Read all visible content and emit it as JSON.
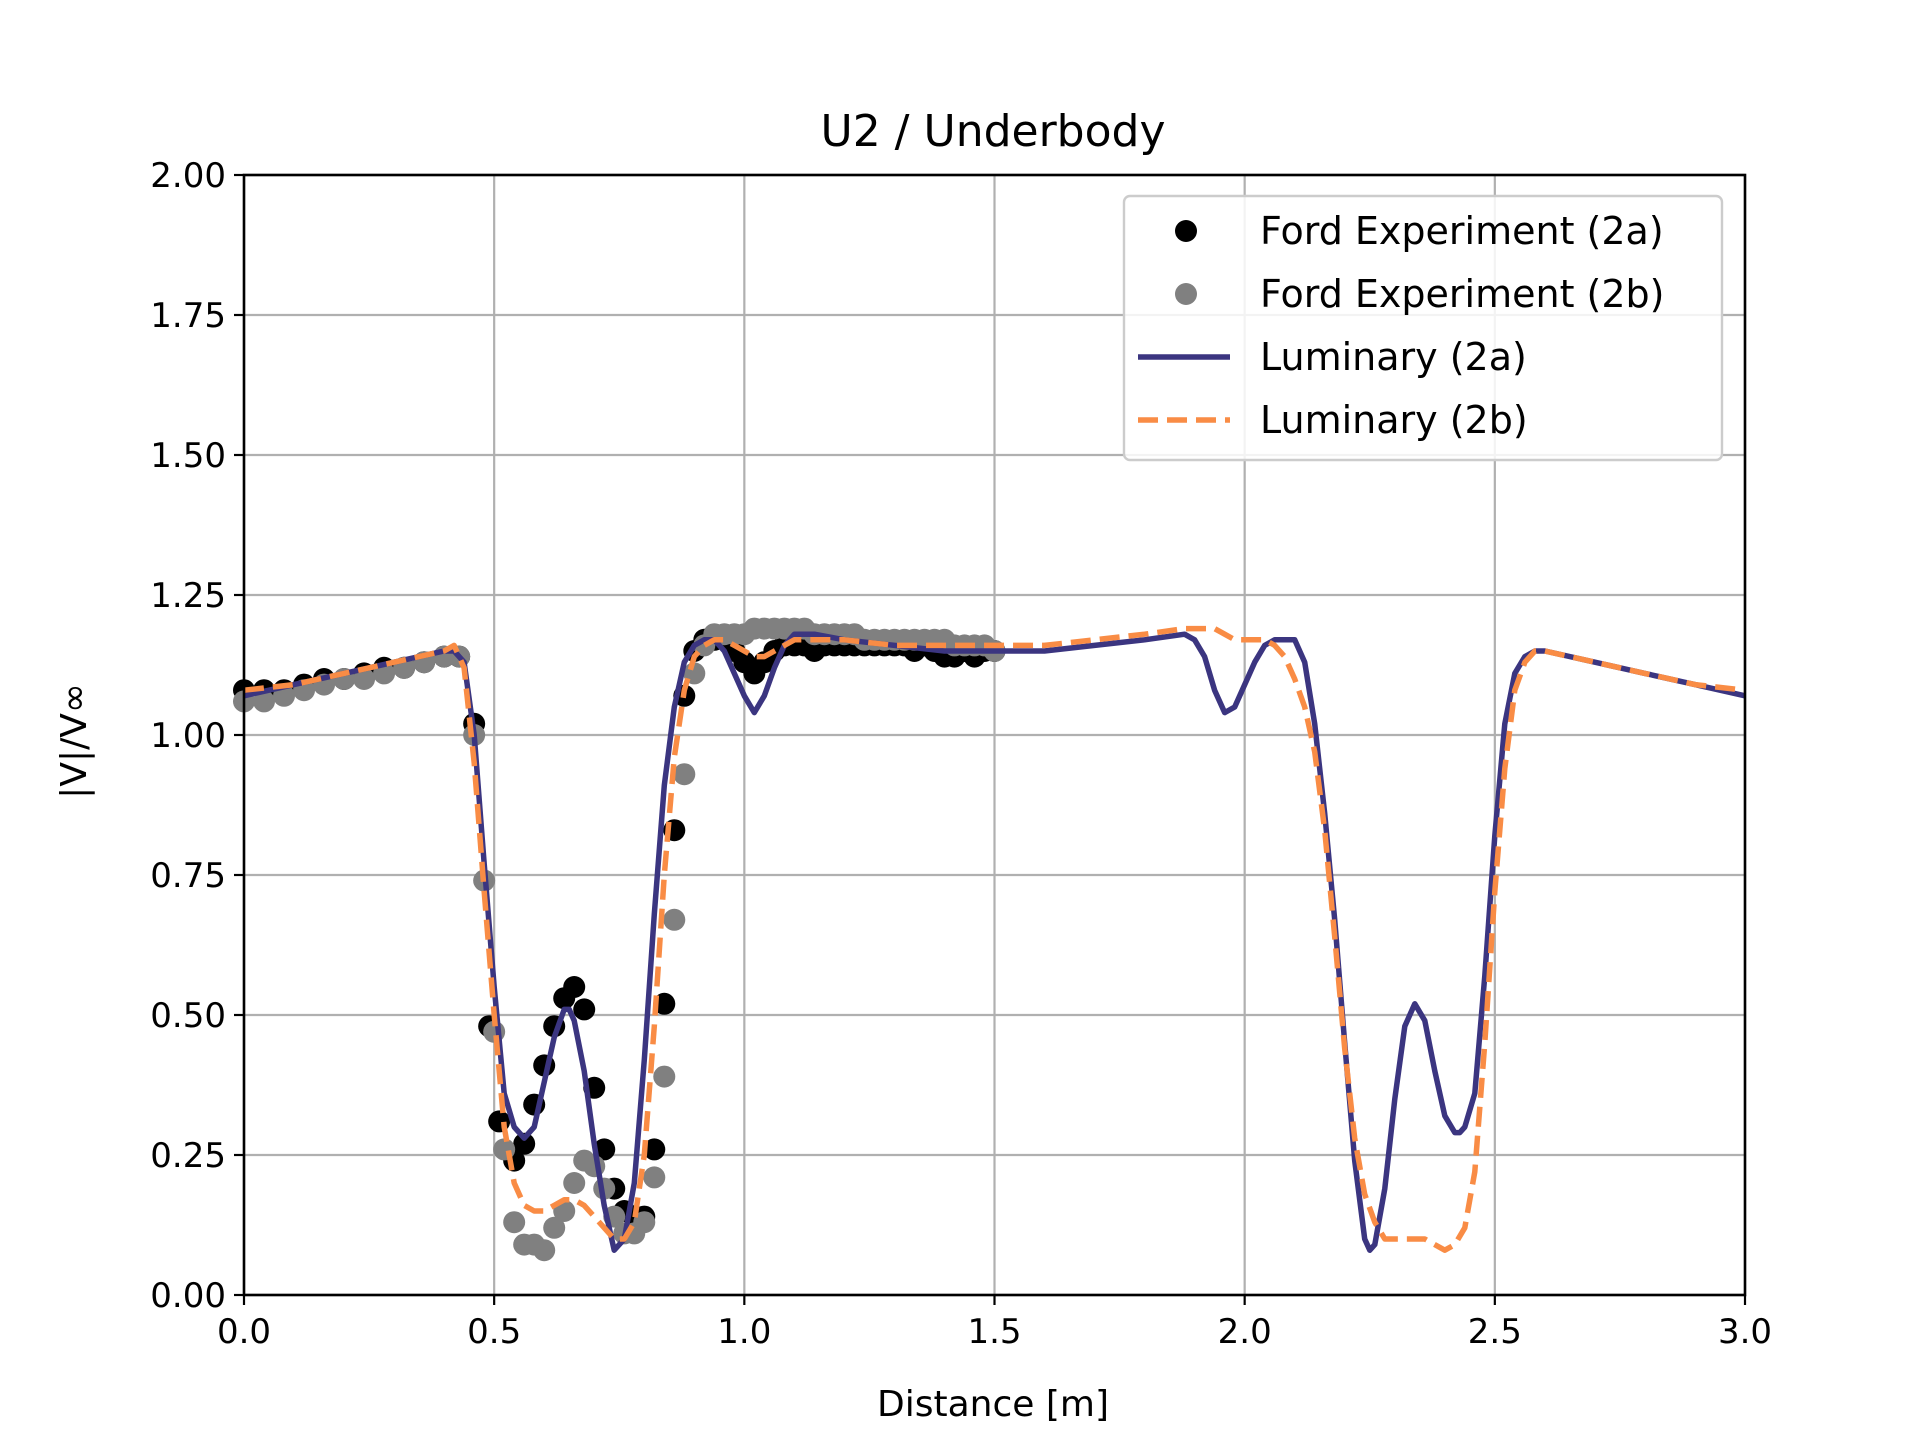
{
  "chart_data": {
    "type": "line",
    "title": "U2 / Underbody",
    "xlabel": "Distance [m]",
    "ylabel": "|V|/V∞",
    "xlim": [
      0.0,
      3.0
    ],
    "ylim": [
      0.0,
      2.0
    ],
    "x_ticks": [
      "0.0",
      "0.5",
      "1.0",
      "1.5",
      "2.0",
      "2.5",
      "3.0"
    ],
    "y_ticks": [
      "0.00",
      "0.25",
      "0.50",
      "0.75",
      "1.00",
      "1.25",
      "1.50",
      "1.75",
      "2.00"
    ],
    "grid": true,
    "legend_position": "top-right",
    "colors": {
      "exp_2a": "#000000",
      "exp_2b": "#808080",
      "lum_2a": "#3b3580",
      "lum_2b": "#f98c45",
      "grid": "#b0b0b0"
    },
    "series": [
      {
        "name": "Ford Experiment (2a)",
        "style": "scatter",
        "x": [
          0.0,
          0.04,
          0.08,
          0.12,
          0.16,
          0.2,
          0.24,
          0.28,
          0.32,
          0.36,
          0.4,
          0.43,
          0.46,
          0.49,
          0.51,
          0.54,
          0.56,
          0.58,
          0.6,
          0.62,
          0.64,
          0.66,
          0.68,
          0.7,
          0.72,
          0.74,
          0.76,
          0.78,
          0.8,
          0.82,
          0.84,
          0.86,
          0.88,
          0.9,
          0.92,
          0.94,
          0.96,
          0.98,
          1.0,
          1.02,
          1.04,
          1.06,
          1.08,
          1.1,
          1.12,
          1.14,
          1.16,
          1.18,
          1.2,
          1.22,
          1.24,
          1.26,
          1.28,
          1.3,
          1.32,
          1.34,
          1.36,
          1.38,
          1.4,
          1.42,
          1.44,
          1.46,
          1.48,
          1.5
        ],
        "y": [
          1.08,
          1.08,
          1.08,
          1.09,
          1.1,
          1.1,
          1.11,
          1.12,
          1.12,
          1.13,
          1.14,
          1.14,
          1.02,
          0.48,
          0.31,
          0.24,
          0.27,
          0.34,
          0.41,
          0.48,
          0.53,
          0.55,
          0.51,
          0.37,
          0.26,
          0.19,
          0.15,
          0.14,
          0.14,
          0.26,
          0.52,
          0.83,
          1.07,
          1.15,
          1.17,
          1.17,
          1.17,
          1.15,
          1.13,
          1.11,
          1.13,
          1.15,
          1.16,
          1.16,
          1.16,
          1.15,
          1.16,
          1.16,
          1.16,
          1.16,
          1.16,
          1.16,
          1.16,
          1.16,
          1.16,
          1.15,
          1.16,
          1.15,
          1.14,
          1.14,
          1.15,
          1.14,
          1.15,
          1.15
        ]
      },
      {
        "name": "Ford Experiment (2b)",
        "style": "scatter",
        "x": [
          0.0,
          0.04,
          0.08,
          0.12,
          0.16,
          0.2,
          0.24,
          0.28,
          0.32,
          0.36,
          0.4,
          0.43,
          0.46,
          0.48,
          0.5,
          0.52,
          0.54,
          0.56,
          0.58,
          0.6,
          0.62,
          0.64,
          0.66,
          0.68,
          0.7,
          0.72,
          0.74,
          0.76,
          0.78,
          0.8,
          0.82,
          0.84,
          0.86,
          0.88,
          0.9,
          0.92,
          0.94,
          0.96,
          0.98,
          1.0,
          1.02,
          1.04,
          1.06,
          1.08,
          1.1,
          1.12,
          1.14,
          1.16,
          1.18,
          1.2,
          1.22,
          1.24,
          1.26,
          1.28,
          1.3,
          1.32,
          1.34,
          1.36,
          1.38,
          1.4,
          1.42,
          1.44,
          1.46,
          1.48,
          1.5
        ],
        "y": [
          1.06,
          1.06,
          1.07,
          1.08,
          1.09,
          1.1,
          1.1,
          1.11,
          1.12,
          1.13,
          1.14,
          1.14,
          1.0,
          0.74,
          0.47,
          0.26,
          0.13,
          0.09,
          0.09,
          0.08,
          0.12,
          0.15,
          0.2,
          0.24,
          0.23,
          0.19,
          0.14,
          0.11,
          0.11,
          0.13,
          0.21,
          0.39,
          0.67,
          0.93,
          1.11,
          1.16,
          1.18,
          1.18,
          1.18,
          1.18,
          1.19,
          1.19,
          1.19,
          1.19,
          1.19,
          1.19,
          1.18,
          1.18,
          1.18,
          1.18,
          1.18,
          1.17,
          1.17,
          1.17,
          1.17,
          1.17,
          1.17,
          1.17,
          1.17,
          1.17,
          1.16,
          1.16,
          1.16,
          1.16,
          1.15
        ]
      },
      {
        "name": "Luminary (2a)",
        "style": "solid",
        "x": [
          0.0,
          0.1,
          0.2,
          0.3,
          0.4,
          0.42,
          0.44,
          0.46,
          0.48,
          0.5,
          0.52,
          0.54,
          0.56,
          0.58,
          0.6,
          0.62,
          0.64,
          0.65,
          0.66,
          0.68,
          0.7,
          0.72,
          0.74,
          0.76,
          0.78,
          0.8,
          0.82,
          0.84,
          0.86,
          0.88,
          0.9,
          0.92,
          0.94,
          0.96,
          0.98,
          1.0,
          1.02,
          1.04,
          1.06,
          1.08,
          1.1,
          1.14,
          1.2,
          1.3,
          1.4,
          1.5,
          1.6,
          1.7,
          1.8,
          1.88,
          1.9,
          1.92,
          1.94,
          1.96,
          1.98,
          2.0,
          2.02,
          2.04,
          2.06,
          2.08,
          2.1,
          2.12,
          2.14,
          2.16,
          2.18,
          2.2,
          2.22,
          2.24,
          2.25,
          2.26,
          2.28,
          2.3,
          2.32,
          2.34,
          2.36,
          2.38,
          2.4,
          2.42,
          2.43,
          2.44,
          2.46,
          2.48,
          2.5,
          2.52,
          2.54,
          2.56,
          2.58,
          2.6,
          2.7,
          2.8,
          2.9,
          3.0
        ],
        "y": [
          1.07,
          1.09,
          1.11,
          1.13,
          1.15,
          1.15,
          1.13,
          1.0,
          0.77,
          0.55,
          0.36,
          0.3,
          0.28,
          0.3,
          0.38,
          0.46,
          0.51,
          0.51,
          0.49,
          0.4,
          0.27,
          0.16,
          0.08,
          0.1,
          0.2,
          0.42,
          0.68,
          0.91,
          1.05,
          1.13,
          1.16,
          1.17,
          1.17,
          1.15,
          1.11,
          1.07,
          1.04,
          1.07,
          1.12,
          1.16,
          1.18,
          1.18,
          1.17,
          1.16,
          1.15,
          1.15,
          1.15,
          1.16,
          1.17,
          1.18,
          1.17,
          1.14,
          1.08,
          1.04,
          1.05,
          1.09,
          1.13,
          1.16,
          1.17,
          1.17,
          1.17,
          1.13,
          1.02,
          0.86,
          0.67,
          0.45,
          0.24,
          0.1,
          0.08,
          0.09,
          0.19,
          0.35,
          0.48,
          0.52,
          0.49,
          0.4,
          0.32,
          0.29,
          0.29,
          0.3,
          0.36,
          0.57,
          0.82,
          1.02,
          1.11,
          1.14,
          1.15,
          1.15,
          1.13,
          1.11,
          1.09,
          1.07
        ]
      },
      {
        "name": "Luminary (2b)",
        "style": "dashed",
        "x": [
          0.0,
          0.1,
          0.2,
          0.3,
          0.4,
          0.42,
          0.44,
          0.46,
          0.48,
          0.5,
          0.52,
          0.54,
          0.56,
          0.58,
          0.6,
          0.62,
          0.64,
          0.66,
          0.68,
          0.7,
          0.72,
          0.74,
          0.76,
          0.78,
          0.8,
          0.82,
          0.84,
          0.86,
          0.88,
          0.9,
          0.92,
          0.94,
          0.96,
          0.98,
          1.0,
          1.02,
          1.04,
          1.06,
          1.08,
          1.1,
          1.14,
          1.2,
          1.3,
          1.4,
          1.5,
          1.6,
          1.7,
          1.8,
          1.88,
          1.9,
          1.92,
          1.94,
          1.96,
          1.98,
          2.0,
          2.02,
          2.04,
          2.06,
          2.08,
          2.1,
          2.12,
          2.14,
          2.16,
          2.18,
          2.2,
          2.22,
          2.24,
          2.26,
          2.28,
          2.3,
          2.32,
          2.34,
          2.36,
          2.38,
          2.4,
          2.42,
          2.44,
          2.46,
          2.48,
          2.5,
          2.52,
          2.54,
          2.56,
          2.58,
          2.6,
          2.7,
          2.8,
          2.9,
          3.0
        ],
        "y": [
          1.08,
          1.09,
          1.11,
          1.13,
          1.15,
          1.16,
          1.12,
          0.95,
          0.72,
          0.5,
          0.3,
          0.2,
          0.16,
          0.15,
          0.15,
          0.16,
          0.17,
          0.17,
          0.16,
          0.14,
          0.12,
          0.1,
          0.1,
          0.13,
          0.25,
          0.48,
          0.75,
          0.96,
          1.08,
          1.14,
          1.16,
          1.17,
          1.17,
          1.16,
          1.15,
          1.14,
          1.14,
          1.15,
          1.16,
          1.17,
          1.17,
          1.17,
          1.16,
          1.16,
          1.16,
          1.16,
          1.17,
          1.18,
          1.19,
          1.19,
          1.19,
          1.19,
          1.18,
          1.17,
          1.17,
          1.17,
          1.17,
          1.16,
          1.14,
          1.1,
          1.05,
          0.97,
          0.83,
          0.64,
          0.44,
          0.28,
          0.18,
          0.13,
          0.1,
          0.1,
          0.1,
          0.1,
          0.1,
          0.09,
          0.08,
          0.09,
          0.12,
          0.22,
          0.45,
          0.72,
          0.94,
          1.08,
          1.13,
          1.15,
          1.15,
          1.13,
          1.11,
          1.09,
          1.08
        ]
      }
    ]
  }
}
